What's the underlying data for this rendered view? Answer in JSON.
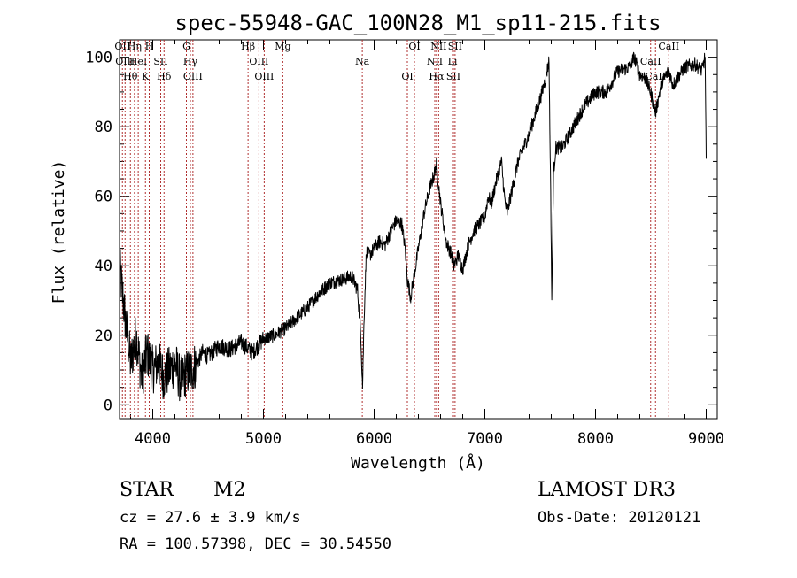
{
  "chart_data": {
    "type": "line",
    "title": "spec-55948-GAC_100N28_M1_sp11-215.fits",
    "xlabel": "Wavelength (Å)",
    "ylabel": "Flux (relative)",
    "xlim": [
      3700,
      9100
    ],
    "ylim": [
      -4,
      105
    ],
    "xticks": [
      4000,
      5000,
      6000,
      7000,
      8000,
      9000
    ],
    "yticks": [
      0,
      20,
      40,
      60,
      80,
      100
    ],
    "series": [
      {
        "name": "spectrum",
        "x": [
          3700,
          3750,
          3800,
          3850,
          3900,
          3950,
          4000,
          4050,
          4100,
          4150,
          4200,
          4250,
          4300,
          4350,
          4400,
          4450,
          4500,
          4600,
          4700,
          4800,
          4900,
          5000,
          5100,
          5200,
          5300,
          5400,
          5500,
          5600,
          5700,
          5800,
          5850,
          5880,
          5895,
          5910,
          5930,
          5960,
          6000,
          6050,
          6100,
          6150,
          6200,
          6250,
          6280,
          6300,
          6330,
          6400,
          6450,
          6500,
          6540,
          6563,
          6600,
          6650,
          6700,
          6720,
          6760,
          6800,
          6850,
          6900,
          6950,
          7000,
          7030,
          7060,
          7100,
          7150,
          7180,
          7200,
          7300,
          7400,
          7500,
          7550,
          7580,
          7595,
          7605,
          7620,
          7640,
          7700,
          7800,
          7900,
          8000,
          8100,
          8200,
          8300,
          8350,
          8400,
          8450,
          8498,
          8542,
          8600,
          8662,
          8700,
          8800,
          8900,
          8960,
          8990,
          9000
        ],
        "y": [
          40,
          25,
          12,
          20,
          8,
          15,
          10,
          12,
          8,
          10,
          12,
          7,
          9,
          10,
          12,
          15,
          14,
          17,
          16,
          18,
          15,
          19,
          20,
          22,
          25,
          28,
          32,
          35,
          36,
          37,
          33,
          20,
          5,
          26,
          44,
          43,
          45,
          47,
          46,
          50,
          53,
          52,
          45,
          36,
          31,
          45,
          55,
          62,
          66,
          69,
          58,
          47,
          43,
          40,
          43,
          39,
          46,
          50,
          52,
          54,
          60,
          58,
          64,
          70,
          59,
          55,
          70,
          78,
          88,
          94,
          99,
          60,
          30,
          66,
          74,
          74,
          80,
          86,
          90,
          90,
          96,
          97,
          100,
          95,
          94,
          90,
          84,
          93,
          96,
          92,
          97,
          98,
          96,
          100,
          70
        ]
      }
    ],
    "lines": [
      {
        "wl": 3726,
        "label": "OII"
      },
      {
        "wl": 3750,
        "label": "OIII"
      },
      {
        "wl": 3798,
        "label": "Hθ"
      },
      {
        "wl": 3835,
        "label": "Hη"
      },
      {
        "wl": 3869,
        "label": "HeI"
      },
      {
        "wl": 3934,
        "label": "K"
      },
      {
        "wl": 3968,
        "label": "H"
      },
      {
        "wl": 4072,
        "label": "SII"
      },
      {
        "wl": 4102,
        "label": "Hδ"
      },
      {
        "wl": 4304,
        "label": "G"
      },
      {
        "wl": 4340,
        "label": "Hγ"
      },
      {
        "wl": 4363,
        "label": "OIII"
      },
      {
        "wl": 4861,
        "label": "Hβ"
      },
      {
        "wl": 4959,
        "label": "OIII"
      },
      {
        "wl": 5007,
        "label": "OIII"
      },
      {
        "wl": 5175,
        "label": "Mg"
      },
      {
        "wl": 5893,
        "label": "Na"
      },
      {
        "wl": 6300,
        "label": "OI"
      },
      {
        "wl": 6364,
        "label": "OI"
      },
      {
        "wl": 6548,
        "label": "NII"
      },
      {
        "wl": 6563,
        "label": "Hα"
      },
      {
        "wl": 6583,
        "label": "NII"
      },
      {
        "wl": 6708,
        "label": "Li"
      },
      {
        "wl": 6716,
        "label": "SII"
      },
      {
        "wl": 6731,
        "label": "SII"
      },
      {
        "wl": 8498,
        "label": "CaII"
      },
      {
        "wl": 8542,
        "label": "CaII"
      },
      {
        "wl": 8662,
        "label": "CaII"
      }
    ],
    "line_color": "#b03030",
    "data_color": "#000000",
    "grid": false
  },
  "info": {
    "class_label": "STAR",
    "subclass": "M2",
    "cz": "cz = 27.6 ± 3.9 km/s",
    "coords": "RA = 100.57398, DEC =  30.54550",
    "survey": "LAMOST DR3",
    "obs_date": "Obs-Date: 20120121"
  }
}
